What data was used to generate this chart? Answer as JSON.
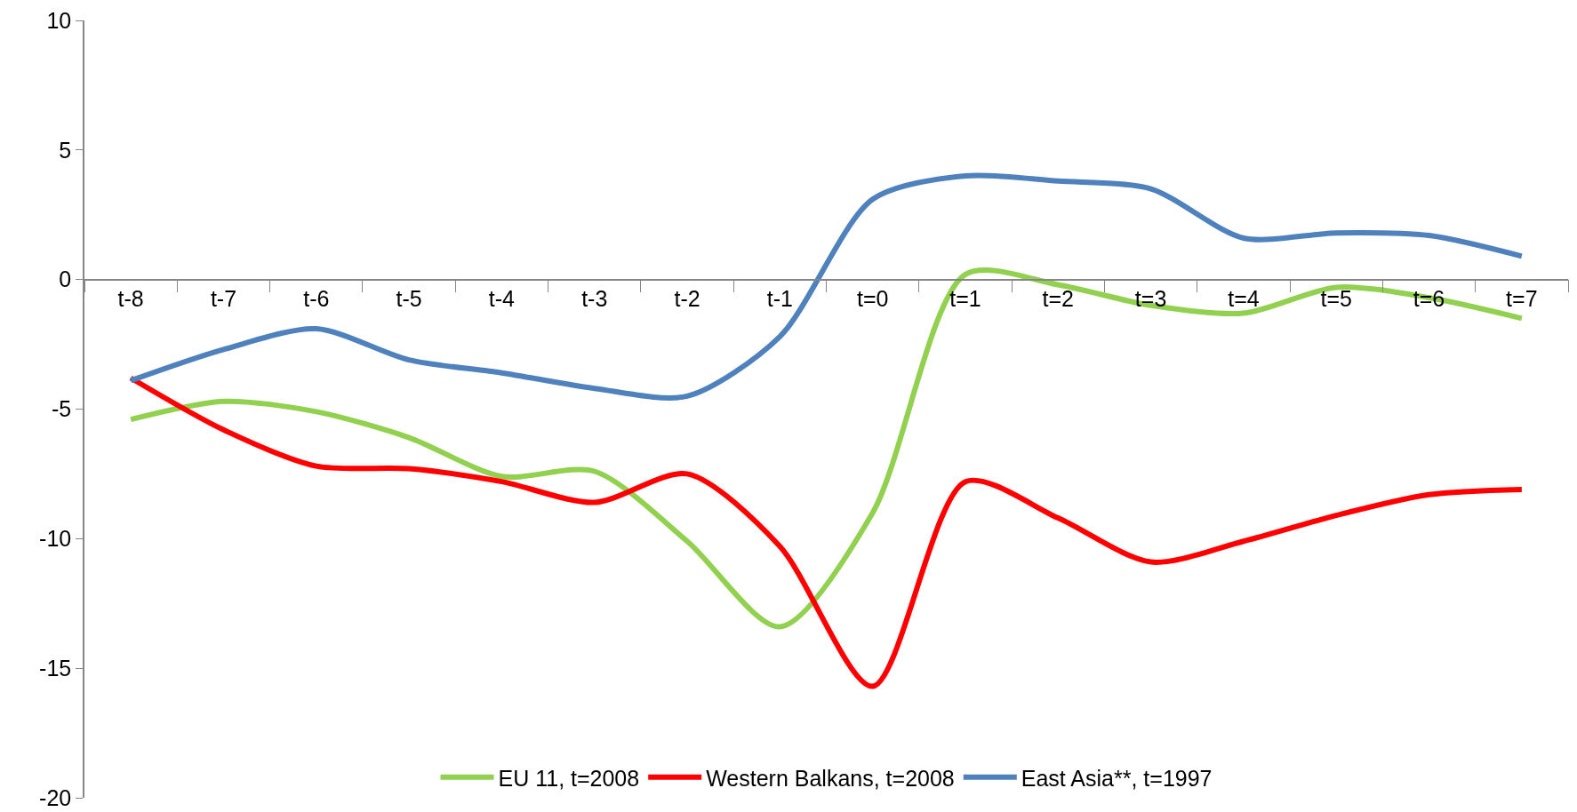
{
  "chart_data": {
    "type": "line",
    "categories": [
      "t-8",
      "t-7",
      "t-6",
      "t-5",
      "t-4",
      "t-3",
      "t-2",
      "t-1",
      "t=0",
      "t=1",
      "t=2",
      "t=3",
      "t=4",
      "t=5",
      "t=6",
      "t=7"
    ],
    "series": [
      {
        "name": "EU 11, t=2008",
        "color": "#92d050",
        "values": [
          -5.4,
          -4.7,
          -5.1,
          -6.1,
          -7.6,
          -7.4,
          -10.1,
          -13.4,
          -9.0,
          0.2,
          -0.2,
          -1.0,
          -1.3,
          -0.3,
          -0.7,
          -1.5
        ]
      },
      {
        "name": "Western Balkans, t=2008",
        "color": "#ff0000",
        "values": [
          -3.8,
          -5.8,
          -7.2,
          -7.3,
          -7.8,
          -8.6,
          -7.5,
          -10.3,
          -15.7,
          -7.8,
          -9.2,
          -10.9,
          -10.1,
          -9.1,
          -8.3,
          -8.1
        ]
      },
      {
        "name": "East Asia**, t=1997",
        "color": "#4f81bd",
        "values": [
          -3.9,
          -2.7,
          -1.9,
          -3.1,
          -3.6,
          -4.2,
          -4.5,
          -2.2,
          3.1,
          4.0,
          3.8,
          3.5,
          1.6,
          1.8,
          1.7,
          0.9
        ]
      }
    ],
    "ylim": [
      -20,
      10
    ],
    "yticks": [
      -20,
      -15,
      -10,
      -5,
      0,
      5,
      10
    ],
    "grid": false,
    "legend": "bottom",
    "marker": "none",
    "line_style": "solid"
  }
}
